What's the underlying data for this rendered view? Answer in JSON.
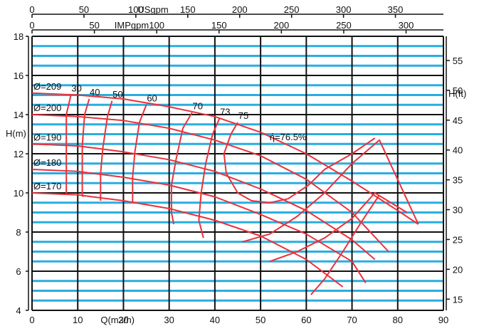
{
  "chart_data": {
    "type": "line",
    "colors": {
      "background": "#ffffff",
      "minor_grid": "#29aee0",
      "major_grid": "#111111",
      "curves": "#e8323c"
    },
    "grid": true,
    "x": {
      "label": "Q(m3/h)",
      "ticks": [
        0,
        10,
        20,
        30,
        40,
        50,
        60,
        70,
        80,
        90
      ],
      "range": [
        0,
        90
      ]
    },
    "y_left": {
      "label": "H(m)",
      "ticks": [
        4,
        6,
        8,
        10,
        12,
        14,
        16,
        18
      ],
      "range": [
        4,
        18
      ]
    },
    "y_right": {
      "label": "H(ft)",
      "ticks": [
        15,
        20,
        25,
        30,
        35,
        40,
        45,
        50,
        55
      ]
    },
    "top_axis_us": {
      "label": "USgpm",
      "ticks": [
        0,
        50,
        100,
        150,
        200,
        250,
        300,
        350
      ]
    },
    "top_axis_imp": {
      "label": "IMPgpm",
      "ticks": [
        0,
        50,
        100,
        150,
        200,
        250,
        300
      ]
    },
    "series": [
      {
        "name": "Ø=209",
        "x": [
          0,
          10,
          20,
          30,
          40,
          50,
          60,
          70,
          80,
          84.5
        ],
        "y": [
          15.1,
          15.0,
          14.8,
          14.4,
          13.9,
          13.1,
          12.0,
          10.6,
          9.1,
          8.4
        ]
      },
      {
        "name": "Ø=200",
        "x": [
          0,
          10,
          20,
          30,
          40,
          50,
          60,
          70,
          78
        ],
        "y": [
          14.0,
          13.9,
          13.7,
          13.3,
          12.7,
          11.9,
          10.7,
          9.0,
          7.0
        ]
      },
      {
        "name": "Ø=190",
        "x": [
          0,
          10,
          20,
          30,
          40,
          50,
          60,
          70,
          75
        ],
        "y": [
          12.5,
          12.4,
          12.1,
          11.7,
          11.1,
          10.2,
          9.1,
          7.6,
          6.6
        ]
      },
      {
        "name": "Ø=180",
        "x": [
          0,
          10,
          20,
          30,
          40,
          50,
          60,
          70,
          73
        ],
        "y": [
          11.2,
          11.1,
          10.8,
          10.4,
          9.8,
          8.9,
          7.9,
          6.5,
          5.4
        ]
      },
      {
        "name": "Ø=170",
        "x": [
          0,
          10,
          20,
          30,
          40,
          50,
          60,
          68
        ],
        "y": [
          10.0,
          9.9,
          9.6,
          9.2,
          8.6,
          7.8,
          6.6,
          5.2
        ]
      }
    ],
    "efficiency_curves": [
      {
        "label": "30",
        "x": [
          8.5,
          7.5,
          7.5,
          7.5,
          7.5,
          7.5
        ],
        "y": [
          15.0,
          14.0,
          12.5,
          11.2,
          10.0,
          9.9
        ]
      },
      {
        "label": "40",
        "x": [
          12.5,
          11.5,
          11.0,
          11.0,
          11.0,
          11.2
        ],
        "y": [
          14.8,
          14.0,
          12.4,
          11.1,
          9.9,
          9.8
        ]
      },
      {
        "label": "50",
        "x": [
          17.5,
          16.5,
          15.5,
          15.0,
          15.0,
          15.0
        ],
        "y": [
          14.7,
          13.9,
          12.3,
          11.0,
          9.8,
          9.6
        ]
      },
      {
        "label": "60",
        "x": [
          25.0,
          23.5,
          22.5,
          22.0,
          22.0
        ],
        "y": [
          14.5,
          13.6,
          12.1,
          10.8,
          9.5
        ]
      },
      {
        "label": "70",
        "x": [
          35.0,
          33.0,
          31.5,
          30.5,
          30.5,
          31.0
        ],
        "y": [
          14.1,
          13.3,
          11.7,
          10.4,
          9.0,
          8.4
        ]
      },
      {
        "label": "73",
        "x": [
          41.0,
          39.5,
          38.0,
          37.0,
          36.5,
          37.5
        ],
        "y": [
          13.8,
          13.0,
          11.5,
          10.0,
          8.6,
          7.7
        ]
      },
      {
        "label": "75",
        "x": [
          45.0,
          43.5,
          42.0,
          42.5,
          45.0,
          48.0,
          52.0,
          56.0,
          60.5,
          64.0,
          70.0,
          75.0
        ],
        "y": [
          13.6,
          13.0,
          12.0,
          11.0,
          10.0,
          9.6,
          9.5,
          9.7,
          10.4,
          11.2,
          12.0,
          12.8
        ]
      }
    ],
    "operating_range": [
      {
        "x": [
          46.0,
          52.0,
          58.0,
          64.0,
          70.0,
          76.0,
          84.5
        ],
        "y": [
          7.5,
          7.9,
          8.8,
          10.0,
          11.5,
          12.7,
          8.4
        ]
      },
      {
        "x": [
          52.0,
          58.0,
          64.0,
          70.0,
          75.0,
          82.0
        ],
        "y": [
          6.5,
          7.0,
          7.7,
          8.7,
          10.0,
          9.0
        ]
      },
      {
        "x": [
          61.0,
          64.0,
          68.0,
          72.0,
          76.0
        ],
        "y": [
          4.8,
          5.6,
          7.0,
          8.5,
          9.9
        ]
      }
    ],
    "annotations": [
      "ή=76.5%"
    ]
  }
}
